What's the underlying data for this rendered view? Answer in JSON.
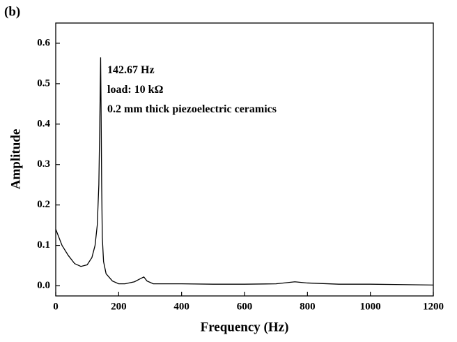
{
  "chart_data": {
    "type": "line",
    "panel_label": "(b)",
    "xlabel": "Frequency (Hz)",
    "ylabel": "Amplitude",
    "annotations": [
      "142.67 Hz",
      "load: 10 kΩ",
      "0.2 mm thick  piezoelectric ceramics"
    ],
    "x": [
      0,
      10,
      20,
      40,
      60,
      80,
      100,
      115,
      125,
      132,
      137,
      140,
      142.67,
      144,
      146,
      148,
      152,
      160,
      180,
      200,
      220,
      250,
      270,
      280,
      290,
      310,
      400,
      500,
      600,
      700,
      760,
      800,
      900,
      1000,
      1100,
      1200
    ],
    "values": [
      0.14,
      0.12,
      0.1,
      0.075,
      0.055,
      0.048,
      0.052,
      0.07,
      0.1,
      0.15,
      0.25,
      0.4,
      0.565,
      0.45,
      0.25,
      0.12,
      0.06,
      0.03,
      0.012,
      0.005,
      0.005,
      0.01,
      0.018,
      0.022,
      0.012,
      0.005,
      0.005,
      0.004,
      0.004,
      0.005,
      0.01,
      0.007,
      0.004,
      0.004,
      0.003,
      0.002
    ],
    "color": "#000000",
    "xlim": [
      0,
      1200
    ],
    "xticks": [
      0,
      200,
      400,
      600,
      800,
      1000,
      1200
    ],
    "ylim": [
      -0.025,
      0.65
    ],
    "yticks": [
      {
        "value": 0,
        "label": "0.0"
      },
      0.1,
      0.2,
      0.3,
      0.4,
      0.5,
      0.6
    ]
  }
}
